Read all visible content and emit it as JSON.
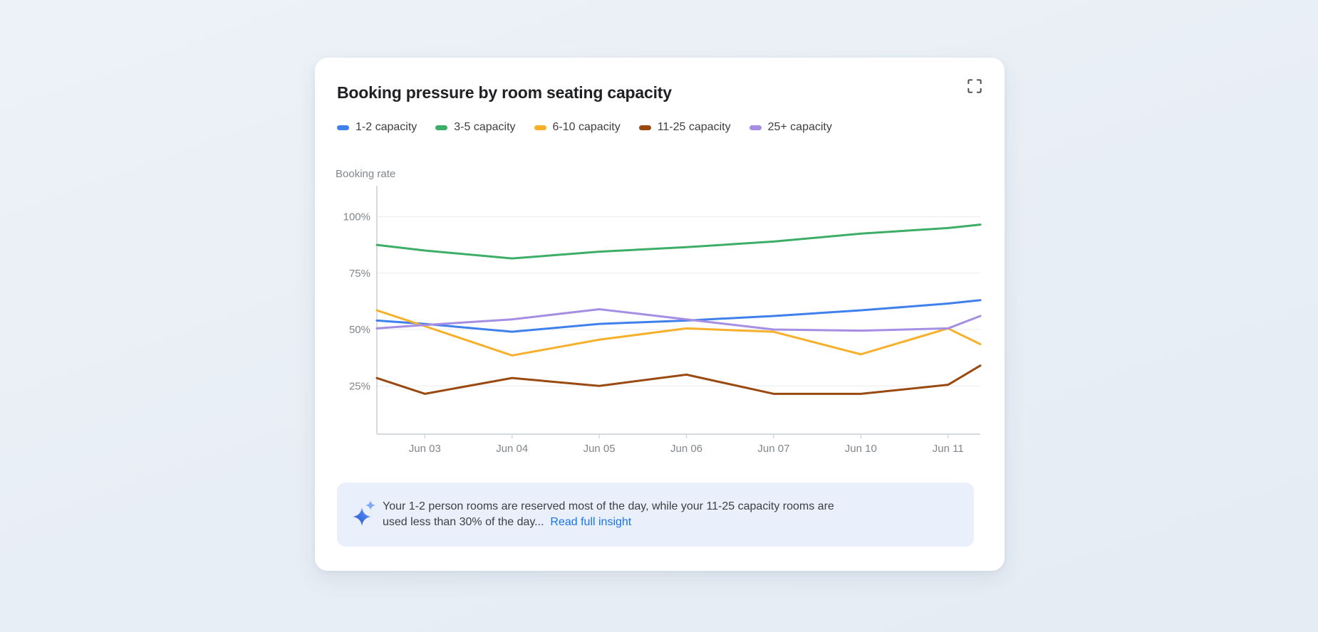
{
  "page": {
    "background_color": "#E8EEF5"
  },
  "card": {
    "title": "Booking pressure by room seating capacity",
    "background_color": "#FFFFFF",
    "expand_icon": "fullscreen-icon"
  },
  "legend": {
    "position": "top",
    "items": [
      {
        "label": "1-2 capacity",
        "color": "#4080EC"
      },
      {
        "label": "3-5 capacity",
        "color": "#3DAD68"
      },
      {
        "label": "6-10 capacity",
        "color": "#F6B02C"
      },
      {
        "label": "11-25 capacity",
        "color": "#9A4A10"
      },
      {
        "label": "25+ capacity",
        "color": "#A68EE4"
      }
    ]
  },
  "chart_data": {
    "type": "line",
    "title": "Booking pressure by room seating capacity",
    "y_axis_label": "Booking rate",
    "y_ticks": [
      "100%",
      "75%",
      "50%",
      "25%"
    ],
    "y_tick_values": [
      100,
      75,
      50,
      25
    ],
    "ylim": [
      3,
      112
    ],
    "grid": true,
    "legend_position": "top",
    "x_tick_labels": [
      "Jun 03",
      "Jun 04",
      "Jun 05",
      "Jun 06",
      "Jun 07",
      "Jun 10",
      "Jun 11"
    ],
    "x_tick_positions": [
      0,
      1,
      2,
      3,
      4,
      5,
      6
    ],
    "x_positions": [
      -0.55,
      0,
      1,
      2,
      3,
      4,
      5,
      6,
      6.37
    ],
    "x_range": [
      -0.55,
      6.37
    ],
    "note": "first and last points are clipped at the plot edges (unlabeled)",
    "series": [
      {
        "name": "1-2 capacity",
        "color": "#4080EC",
        "values": [
          54,
          52.5,
          49,
          52.5,
          54,
          56,
          58.5,
          61.5,
          63
        ]
      },
      {
        "name": "3-5 capacity",
        "color": "#3DAD68",
        "values": [
          87.5,
          85,
          81.5,
          84.5,
          86.5,
          89,
          92.5,
          95,
          96.5
        ]
      },
      {
        "name": "6-10 capacity",
        "color": "#F6B02C",
        "values": [
          58.5,
          51.5,
          38.5,
          45.5,
          50.5,
          49,
          39,
          50.5,
          43.5
        ]
      },
      {
        "name": "11-25 capacity",
        "color": "#9A4A10",
        "values": [
          28.5,
          21.5,
          28.5,
          25,
          30,
          21.5,
          21.5,
          25.5,
          34
        ]
      },
      {
        "name": "25+ capacity",
        "color": "#A68EE4",
        "values": [
          50.5,
          52,
          54.5,
          59,
          54.5,
          50,
          49.5,
          50.5,
          56
        ]
      }
    ],
    "axis_color": "#D6DADF",
    "gridline_color": "#EAECEF",
    "tick_label_color": "#80868B"
  },
  "insight": {
    "icon": "sparkle-icon",
    "text": "Your 1-2 person rooms are reserved most of the day, while your 11-25 capacity rooms are used less than 30% of the day...",
    "link": "Read full insight",
    "link_color": "#1A73E8",
    "background_color": "#E9F0FB"
  }
}
